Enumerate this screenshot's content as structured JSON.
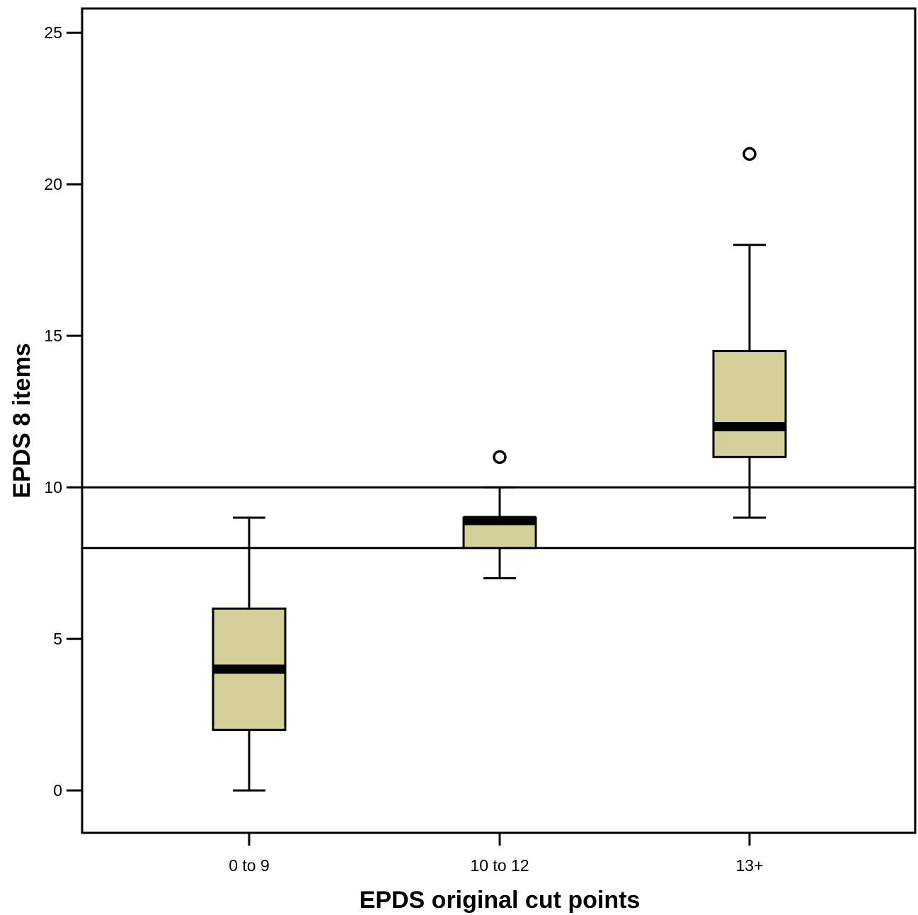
{
  "chart_data": {
    "type": "boxplot",
    "title": "",
    "xlabel": "EPDS original cut points",
    "ylabel": "EPDS 8 items",
    "ylim": [
      -1.4,
      25.8
    ],
    "yticks": [
      0,
      5,
      10,
      15,
      20,
      25
    ],
    "categories": [
      "0 to 9",
      "10 to 12",
      "13+"
    ],
    "boxes": [
      {
        "category": "0 to 9",
        "whisker_low": 0,
        "q1": 2,
        "median": 4,
        "q3": 6,
        "whisker_high": 9,
        "outliers": []
      },
      {
        "category": "10 to 12",
        "whisker_low": 7,
        "q1": 8,
        "median": 9,
        "q3": 9,
        "whisker_high": 10,
        "outliers": [
          11
        ]
      },
      {
        "category": "13+",
        "whisker_low": 9,
        "q1": 11,
        "median": 12,
        "q3": 14.5,
        "whisker_high": 18,
        "outliers": [
          21
        ]
      }
    ],
    "reference_lines": [
      10,
      8
    ],
    "grid": false,
    "box_color": "#d4d09a",
    "line_color": "#000000"
  }
}
